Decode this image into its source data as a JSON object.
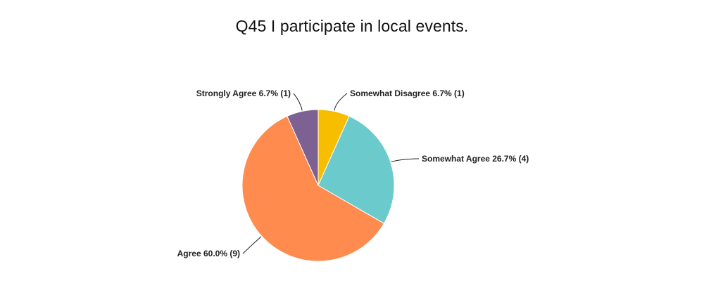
{
  "chart_data": {
    "type": "pie",
    "title": "Q45 I participate in local events.",
    "slices": [
      {
        "name": "Somewhat Disagree",
        "percent": 6.7,
        "count": 1,
        "color": "#F7BE00",
        "label": "Somewhat Disagree 6.7% (1)"
      },
      {
        "name": "Somewhat Agree",
        "percent": 26.7,
        "count": 4,
        "color": "#6BCACC",
        "label": "Somewhat Agree 26.7% (4)"
      },
      {
        "name": "Agree",
        "percent": 60.0,
        "count": 9,
        "color": "#FF8B4F",
        "label": "Agree 60.0% (9)"
      },
      {
        "name": "Strongly Agree",
        "percent": 6.7,
        "count": 1,
        "color": "#7D6193",
        "label": "Strongly Agree 6.7% (1)"
      }
    ],
    "start": "12 o'clock",
    "direction": "clockwise"
  }
}
